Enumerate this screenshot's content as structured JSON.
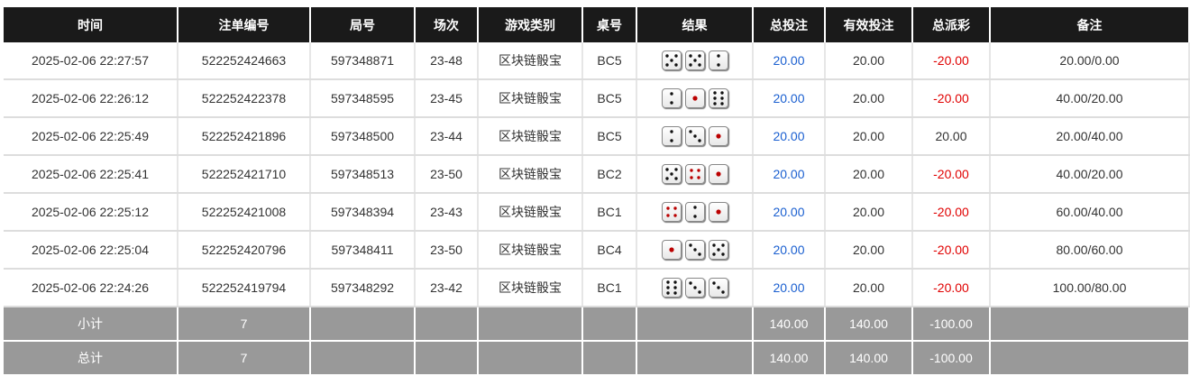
{
  "headers": [
    "时间",
    "注单编号",
    "局号",
    "场次",
    "游戏类别",
    "桌号",
    "结果",
    "总投注",
    "有效投注",
    "总派彩",
    "备注"
  ],
  "rows": [
    {
      "time": "2025-02-06 22:27:57",
      "bet_id": "522252424663",
      "round": "597348871",
      "session": "23-48",
      "game": "区块链骰宝",
      "table": "BC5",
      "dice": [
        5,
        5,
        2
      ],
      "total_bet": "20.00",
      "valid_bet": "20.00",
      "payout": "-20.00",
      "note": "20.00/0.00"
    },
    {
      "time": "2025-02-06 22:26:12",
      "bet_id": "522252422378",
      "round": "597348595",
      "session": "23-45",
      "game": "区块链骰宝",
      "table": "BC5",
      "dice": [
        2,
        1,
        6
      ],
      "total_bet": "20.00",
      "valid_bet": "20.00",
      "payout": "-20.00",
      "note": "40.00/20.00"
    },
    {
      "time": "2025-02-06 22:25:49",
      "bet_id": "522252421896",
      "round": "597348500",
      "session": "23-44",
      "game": "区块链骰宝",
      "table": "BC5",
      "dice": [
        2,
        3,
        1
      ],
      "total_bet": "20.00",
      "valid_bet": "20.00",
      "payout": "20.00",
      "note": "20.00/40.00"
    },
    {
      "time": "2025-02-06 22:25:41",
      "bet_id": "522252421710",
      "round": "597348513",
      "session": "23-50",
      "game": "区块链骰宝",
      "table": "BC2",
      "dice": [
        5,
        4,
        1
      ],
      "total_bet": "20.00",
      "valid_bet": "20.00",
      "payout": "-20.00",
      "note": "40.00/20.00"
    },
    {
      "time": "2025-02-06 22:25:12",
      "bet_id": "522252421008",
      "round": "597348394",
      "session": "23-43",
      "game": "区块链骰宝",
      "table": "BC1",
      "dice": [
        4,
        2,
        1
      ],
      "total_bet": "20.00",
      "valid_bet": "20.00",
      "payout": "-20.00",
      "note": "60.00/40.00"
    },
    {
      "time": "2025-02-06 22:25:04",
      "bet_id": "522252420796",
      "round": "597348411",
      "session": "23-50",
      "game": "区块链骰宝",
      "table": "BC4",
      "dice": [
        1,
        3,
        5
      ],
      "total_bet": "20.00",
      "valid_bet": "20.00",
      "payout": "-20.00",
      "note": "80.00/60.00"
    },
    {
      "time": "2025-02-06 22:24:26",
      "bet_id": "522252419794",
      "round": "597348292",
      "session": "23-42",
      "game": "区块链骰宝",
      "table": "BC1",
      "dice": [
        6,
        3,
        3
      ],
      "total_bet": "20.00",
      "valid_bet": "20.00",
      "payout": "-20.00",
      "note": "100.00/80.00"
    }
  ],
  "subtotal": {
    "label": "小计",
    "count": "7",
    "total_bet": "140.00",
    "valid_bet": "140.00",
    "payout": "-100.00"
  },
  "grandtotal": {
    "label": "总计",
    "count": "7",
    "total_bet": "140.00",
    "valid_bet": "140.00",
    "payout": "-100.00"
  },
  "colors": {
    "positive": "#1a5fd0",
    "negative": "#e00000",
    "header": "#1a1a1a",
    "summary": "#999999"
  }
}
